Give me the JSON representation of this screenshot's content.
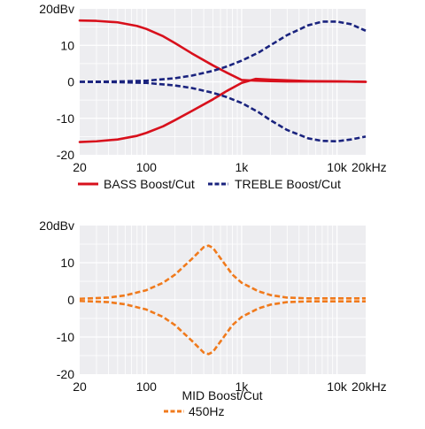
{
  "colors": {
    "plot_background": "#ededf0",
    "grid": "#ffffff",
    "bass": "#d8101c",
    "treble": "#1a237e",
    "mid": "#f07a1c"
  },
  "chart_data": [
    {
      "type": "line",
      "x_scale": "log",
      "xlim": [
        20,
        20000
      ],
      "ylim": [
        -20,
        20
      ],
      "y_ticks": [
        {
          "value": 20,
          "label": "20dBv"
        },
        {
          "value": 10,
          "label": "10"
        },
        {
          "value": 0,
          "label": "0"
        },
        {
          "value": -10,
          "label": "-10"
        },
        {
          "value": -20,
          "label": "-20"
        }
      ],
      "x_ticks": [
        {
          "value": 20,
          "label": "20"
        },
        {
          "value": 100,
          "label": "100"
        },
        {
          "value": 1000,
          "label": "1k"
        },
        {
          "value": 10000,
          "label": "10k"
        },
        {
          "value": 20000,
          "label": "20kHz"
        }
      ],
      "grid": true,
      "legend": {
        "placement": "bottom",
        "title": ""
      },
      "series": [
        {
          "name": "BASS Boost/Cut",
          "color": "#d8101c",
          "style": "solid",
          "x": [
            20,
            30,
            50,
            80,
            100,
            150,
            200,
            300,
            500,
            700,
            1000,
            1400,
            2000,
            3000,
            5000,
            10000,
            20000
          ],
          "y": [
            16.8,
            16.7,
            16.3,
            15.3,
            14.5,
            12.5,
            10.6,
            7.8,
            4.5,
            2.5,
            0.5,
            0.3,
            0.2,
            0.1,
            0.1,
            0.1,
            0.0
          ]
        },
        {
          "name": "",
          "color": "#d8101c",
          "style": "solid",
          "x": [
            20,
            30,
            50,
            80,
            100,
            150,
            200,
            300,
            500,
            700,
            1000,
            1400,
            2000,
            3000,
            5000,
            10000,
            20000
          ],
          "y": [
            -16.5,
            -16.3,
            -15.8,
            -14.8,
            -14.0,
            -12.2,
            -10.5,
            -8.0,
            -4.8,
            -2.5,
            -0.3,
            0.8,
            0.6,
            0.4,
            0.2,
            0.1,
            0.0
          ]
        },
        {
          "name": "TREBLE Boost/Cut",
          "color": "#1a237e",
          "style": "dashed",
          "x": [
            20,
            50,
            100,
            200,
            300,
            500,
            700,
            1000,
            1500,
            2000,
            3000,
            5000,
            7000,
            10000,
            14000,
            20000
          ],
          "y": [
            0.0,
            0.1,
            0.3,
            1.0,
            1.7,
            3.0,
            4.2,
            5.8,
            8.0,
            10.0,
            12.8,
            15.5,
            16.5,
            16.5,
            15.8,
            14.0
          ]
        },
        {
          "name": "",
          "color": "#1a237e",
          "style": "dashed",
          "x": [
            20,
            50,
            100,
            200,
            300,
            500,
            700,
            1000,
            1500,
            2000,
            3000,
            5000,
            7000,
            10000,
            14000,
            20000
          ],
          "y": [
            0.0,
            -0.1,
            -0.3,
            -1.0,
            -1.7,
            -3.0,
            -4.2,
            -5.8,
            -8.3,
            -10.5,
            -13.2,
            -15.5,
            -16.2,
            -16.3,
            -15.8,
            -15.0
          ]
        }
      ]
    },
    {
      "type": "line",
      "x_scale": "log",
      "xlim": [
        20,
        20000
      ],
      "ylim": [
        -20,
        20
      ],
      "y_ticks": [
        {
          "value": 20,
          "label": "20dBv"
        },
        {
          "value": 10,
          "label": "10"
        },
        {
          "value": 0,
          "label": "0"
        },
        {
          "value": -10,
          "label": "-10"
        },
        {
          "value": -20,
          "label": "-20"
        }
      ],
      "x_ticks": [
        {
          "value": 20,
          "label": "20"
        },
        {
          "value": 100,
          "label": "100"
        },
        {
          "value": 1000,
          "label": "1k"
        },
        {
          "value": 10000,
          "label": "10k"
        },
        {
          "value": 20000,
          "label": "20kHz"
        }
      ],
      "grid": true,
      "legend": {
        "placement": "bottom",
        "title": "MID Boost/Cut"
      },
      "series": [
        {
          "name": "450Hz",
          "color": "#f07a1c",
          "style": "dashed",
          "x": [
            20,
            40,
            60,
            100,
            150,
            200,
            300,
            400,
            450,
            500,
            600,
            800,
            1000,
            1500,
            2000,
            3000,
            5000,
            10000,
            20000
          ],
          "y": [
            0.3,
            0.6,
            1.2,
            2.6,
            4.6,
            6.8,
            11.0,
            14.2,
            14.6,
            14.0,
            11.2,
            6.8,
            4.6,
            2.3,
            1.3,
            0.6,
            0.4,
            0.4,
            0.4
          ]
        },
        {
          "name": "",
          "color": "#f07a1c",
          "style": "dashed",
          "x": [
            20,
            40,
            60,
            100,
            150,
            200,
            300,
            400,
            450,
            500,
            600,
            800,
            1000,
            1500,
            2000,
            3000,
            5000,
            10000,
            20000
          ],
          "y": [
            -0.3,
            -0.6,
            -1.2,
            -2.6,
            -4.6,
            -6.8,
            -11.0,
            -14.2,
            -14.6,
            -14.0,
            -11.2,
            -6.8,
            -4.6,
            -2.3,
            -1.3,
            -0.6,
            -0.4,
            -0.4,
            -0.4
          ]
        }
      ]
    }
  ]
}
